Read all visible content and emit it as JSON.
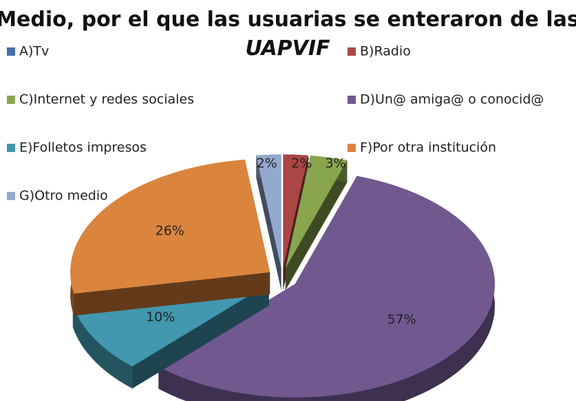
{
  "chart_data": {
    "type": "pie3d",
    "title": "Medio, por el que las usuarias se enteraron de las",
    "subtitle": "UAPVIF",
    "categories": [
      "A)Tv",
      "B)Radio",
      "C)Internet y redes sociales",
      "D)Un@ amiga@ o conocid@",
      "E)Folletos impresos",
      "F)Por otra institución",
      "G)Otro medio"
    ],
    "values": [
      0,
      2,
      3,
      57,
      10,
      26,
      2
    ],
    "value_labels": [
      null,
      "2%",
      "3%",
      "57%",
      "10%",
      "26%",
      "2%"
    ],
    "colors": [
      "#4572a7",
      "#aa4643",
      "#89a54e",
      "#71588f",
      "#4198af",
      "#db843d",
      "#93a9cf"
    ],
    "legend": "top"
  }
}
